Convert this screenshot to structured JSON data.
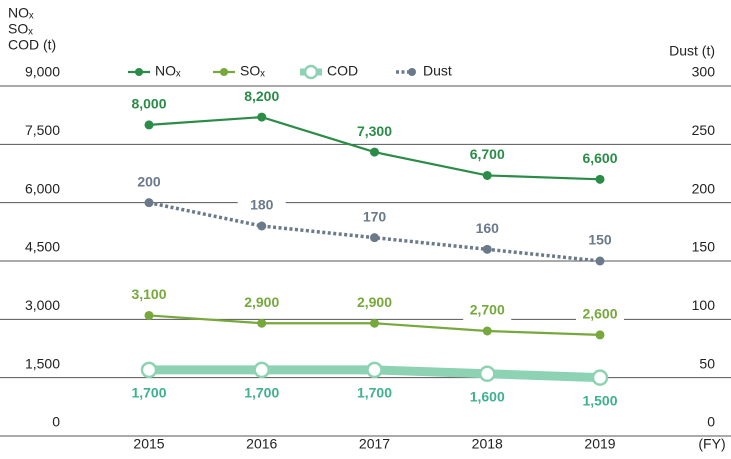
{
  "chart_data": {
    "type": "line",
    "y_axis_label": [
      "NOₓ",
      "SOₓ",
      "COD (t)"
    ],
    "y2_axis_label": "Dust (t)",
    "x_axis_label": "(FY)",
    "categories": [
      "2015",
      "2016",
      "2017",
      "2018",
      "2019"
    ],
    "ylim": [
      0,
      9000
    ],
    "yticks": [
      {
        "value": 0,
        "label": "0"
      },
      {
        "value": 1500,
        "label": "1,500"
      },
      {
        "value": 3000,
        "label": "3,000"
      },
      {
        "value": 4500,
        "label": "4,500"
      },
      {
        "value": 6000,
        "label": "6,000"
      },
      {
        "value": 7500,
        "label": "7,500"
      },
      {
        "value": 9000,
        "label": "9,000"
      }
    ],
    "y2lim": [
      0,
      300
    ],
    "y2ticks": [
      0,
      50,
      100,
      150,
      200,
      250,
      300
    ],
    "grid": true,
    "legend": "top",
    "series": [
      {
        "name": "NOₓ",
        "color": "#2b8c47",
        "values": [
          8000,
          8200,
          7300,
          6700,
          6600
        ],
        "value_labels": [
          "8,000",
          "8,200",
          "7,300",
          "6,700",
          "6,600"
        ]
      },
      {
        "name": "SOₓ",
        "color": "#76a83c",
        "values": [
          3100,
          2900,
          2900,
          2700,
          2600
        ],
        "value_labels": [
          "3,100",
          "2,900",
          "2,900",
          "2,700",
          "2,600"
        ]
      },
      {
        "name": "COD",
        "color": "#8ed2b4",
        "marker": "hollow",
        "values": [
          1700,
          1700,
          1700,
          1600,
          1500
        ],
        "value_labels": [
          "1,700",
          "1,700",
          "1,700",
          "1,600",
          "1,500"
        ]
      },
      {
        "name": "Dust",
        "color": "#6a7a8b",
        "dash": "dotted",
        "axis": "y2",
        "values": [
          200,
          180,
          170,
          160,
          150
        ]
      }
    ]
  }
}
